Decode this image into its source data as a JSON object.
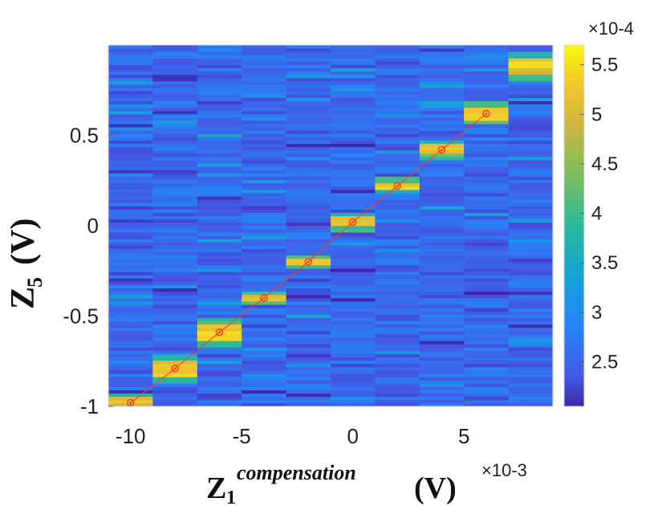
{
  "chart_data": {
    "type": "heatmap",
    "x_tick_labels": [
      "-10",
      "-5",
      "0",
      "5"
    ],
    "x_tick_values": [
      -10,
      -5,
      0,
      5
    ],
    "y_tick_labels": [
      "-1",
      "-0.5",
      "0",
      "0.5"
    ],
    "y_tick_values": [
      -1,
      -0.5,
      0,
      0.5
    ],
    "xlim": [
      -11,
      9
    ],
    "ylim": [
      -1,
      1
    ],
    "x_multiplier": "×10-3",
    "colorbar": {
      "min": 2.05,
      "max": 5.7,
      "tick_values": [
        2.5,
        3,
        3.5,
        4,
        4.5,
        5,
        5.5
      ],
      "tick_labels": [
        "2.5",
        "3",
        "3.5",
        "4",
        "4.5",
        "5",
        "5.5"
      ],
      "multiplier": "×10-4"
    },
    "columns_x": [
      -10,
      -8,
      -6,
      -4,
      -2,
      0,
      2,
      4,
      6,
      8
    ],
    "peak_z5": [
      -0.98,
      -0.79,
      -0.59,
      -0.4,
      -0.2,
      0.02,
      0.22,
      0.42,
      0.62,
      0.88
    ],
    "peak_half_width": [
      0.02,
      0.04,
      0.04,
      0.01,
      0.01,
      0.02,
      0.01,
      0.02,
      0.03,
      0.04
    ],
    "fit_points": {
      "x": [
        -10,
        -8,
        -6,
        -4,
        -2,
        0,
        2,
        4,
        6
      ],
      "y": [
        -0.98,
        -0.79,
        -0.59,
        -0.4,
        -0.2,
        0.02,
        0.22,
        0.42,
        0.62
      ]
    },
    "xlabel_main": "Z",
    "xlabel_sub": "1",
    "xlabel_sup": "compensation",
    "xlabel_unit": "(V)",
    "ylabel_main": "Z",
    "ylabel_sub": "5",
    "ylabel_unit": "(V)"
  },
  "colors": {
    "fit_line": "#ff3b1f",
    "marker": "#ff3b1f"
  }
}
